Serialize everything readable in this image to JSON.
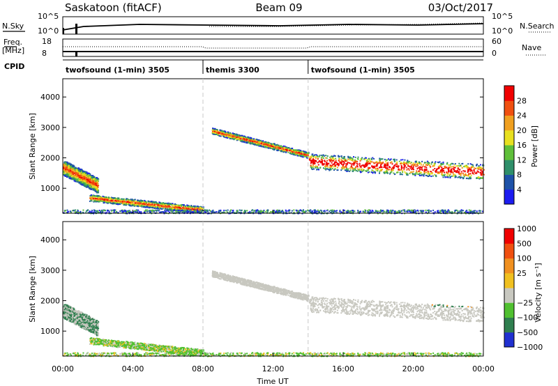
{
  "header": {
    "station": "Saskatoon (fitACF)",
    "beam": "Beam 09",
    "date": "03/Oct/2017"
  },
  "strip_labels": {
    "left_top": "N.Sky",
    "left_freq_a": "Freq.",
    "left_freq_b": "[MHz]",
    "left_cpid": "CPID",
    "right_top": "N.Search",
    "right_mid": "Nave",
    "nsky_ticks": [
      "10^5",
      "10^0"
    ],
    "nsearch_ticks": [
      "10^5",
      "10^0"
    ],
    "freq_ticks": [
      "18",
      "8"
    ],
    "nave_ticks": [
      "60",
      "0"
    ]
  },
  "cpid_segments": [
    {
      "label": "twofsound (1-min) 3505",
      "start_hour": 0,
      "end_hour": 8
    },
    {
      "label": "themis 3300",
      "start_hour": 8,
      "end_hour": 14
    },
    {
      "label": "twofsound (1-min) 3505",
      "start_hour": 14,
      "end_hour": 24
    }
  ],
  "chart_data": [
    {
      "type": "heatmap",
      "panel": "power",
      "ylabel": "Slant Range [km]",
      "ylim": [
        180,
        4600
      ],
      "yticks": [
        "1000",
        "2000",
        "3000",
        "4000"
      ],
      "xlim_hours": [
        0,
        24
      ],
      "colorbar_label": "Power [dB]",
      "colorbar_ticks": [
        "4",
        "8",
        "12",
        "16",
        "20",
        "24",
        "28"
      ],
      "colorbar_colors": [
        "#1c1cf0",
        "#1e52a8",
        "#2f8f6a",
        "#5fbf3a",
        "#e8e020",
        "#f0a020",
        "#f05010",
        "#f00000"
      ]
    },
    {
      "type": "heatmap",
      "panel": "velocity",
      "ylabel": "Slant Range [km]",
      "ylim": [
        180,
        4600
      ],
      "yticks": [
        "1000",
        "2000",
        "3000",
        "4000"
      ],
      "xlim_hours": [
        0,
        24
      ],
      "xlabel": "Time UT",
      "xticks": [
        "00:00",
        "04:00",
        "08:00",
        "12:00",
        "16:00",
        "20:00",
        "00:00"
      ],
      "colorbar_label": "Velocity [m s⁻¹]",
      "colorbar_ticks": [
        "1000",
        "500",
        "100",
        "25",
        "−25",
        "−100",
        "−500",
        "−1000"
      ],
      "colorbar_colors": [
        "#2030d0",
        "#2f7f4f",
        "#50c030",
        "#c8c8c0",
        "#f0c020",
        "#f09020",
        "#f05010",
        "#f00000"
      ]
    }
  ]
}
